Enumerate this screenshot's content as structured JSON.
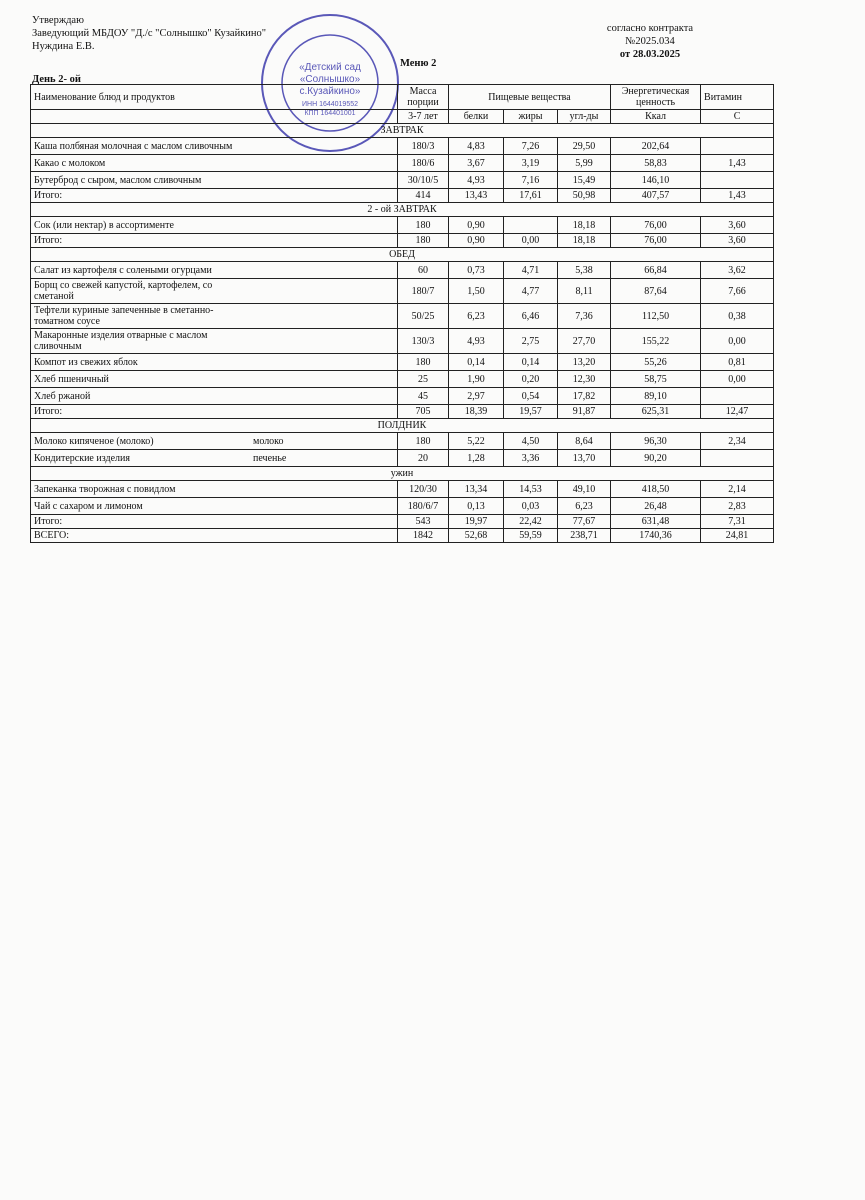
{
  "header": {
    "approval": [
      "Утверждаю",
      "Заведующий МБДОУ \"Д./с \"Солнышко\" Кузайкино\"",
      "Нуждина Е.В."
    ],
    "menu": "Меню 2",
    "contract": [
      "согласно контракта",
      "№2025.034",
      "от 28.03.2025"
    ],
    "day": "День 2- ой"
  },
  "stamp": [
    "«Детский сад",
    "«Солнышко»",
    "с.Кузайкино»",
    "ИНН 1644019552",
    "КПП 164401001"
  ],
  "table": {
    "header": {
      "name": "Наименование блюд и продуктов",
      "mass": "Масса порции",
      "age": "3-7 лет",
      "nutrients": "Пищевые вещества",
      "proteins": "белки",
      "fats": "жиры",
      "carbs": "угл-ды",
      "energy": "Энергетическая ценность",
      "kcal": "Ккал",
      "vitamin": "Витамин",
      "vitamin_c": "С"
    },
    "sections": [
      {
        "title": "ЗАВТРАК",
        "rows": [
          {
            "cells": [
              "Каша полбяная молочная с маслом сливочным",
              "180/3",
              "4,83",
              "7,26",
              "29,50",
              "202,64",
              null
            ]
          },
          {
            "cells": [
              "Какао с молоком",
              "180/6",
              "3,67",
              "3,19",
              "5,99",
              "58,83",
              "1,43"
            ]
          },
          {
            "cells": [
              "Бутерброд с сыром, маслом сливочным",
              "30/10/5",
              "4,93",
              "7,16",
              "15,49",
              "146,10",
              null
            ]
          }
        ],
        "total": [
          "Итого:",
          "414",
          "13,43",
          "17,61",
          "50,98",
          "407,57",
          "1,43"
        ]
      },
      {
        "title": "2 - ой ЗАВТРАК",
        "rows": [
          {
            "cells": [
              "Сок (или нектар) в ассортименте",
              "180",
              "0,90",
              null,
              "18,18",
              "76,00",
              "3,60"
            ]
          }
        ],
        "total": [
          "Итого:",
          "180",
          "0,90",
          "0,00",
          "18,18",
          "76,00",
          "3,60"
        ]
      },
      {
        "title": "ОБЕД",
        "rows": [
          {
            "cells": [
              "Салат из картофеля с солеными огурцами",
              "60",
              "0,73",
              "4,71",
              "5,38",
              "66,84",
              "3,62"
            ]
          },
          {
            "cells": [
              "Борщ со свежей капустой, картофелем, со сметаной",
              "180/7",
              "1,50",
              "4,77",
              "8,11",
              "87,64",
              "7,66"
            ]
          },
          {
            "cells": [
              "Тефтели куриные запеченные в сметанно-томатном соусе",
              "50/25",
              "6,23",
              "6,46",
              "7,36",
              "112,50",
              "0,38"
            ]
          },
          {
            "cells": [
              "Макаронные изделия отварные с маслом сливочным",
              "130/3",
              "4,93",
              "2,75",
              "27,70",
              "155,22",
              "0,00"
            ]
          },
          {
            "cells": [
              "Компот из свежих яблок",
              "180",
              "0,14",
              "0,14",
              "13,20",
              "55,26",
              "0,81"
            ]
          },
          {
            "cells": [
              "Хлеб пшеничный",
              "25",
              "1,90",
              "0,20",
              "12,30",
              "58,75",
              "0,00"
            ]
          },
          {
            "cells": [
              "Хлеб ржаной",
              "45",
              "2,97",
              "0,54",
              "17,82",
              "89,10",
              null
            ]
          }
        ],
        "total": [
          "Итого:",
          "705",
          "18,39",
          "19,57",
          "91,87",
          "625,31",
          "12,47"
        ]
      },
      {
        "title": "ПОЛДНИК",
        "rows": [
          {
            "cells": [
              "Молоко кипяченое (молоко)",
              "180",
              "5,22",
              "4,50",
              "8,64",
              "96,30",
              "2,34"
            ],
            "note": "молоко"
          },
          {
            "cells": [
              "Кондитерские изделия",
              "20",
              "1,28",
              "3,36",
              "13,70",
              "90,20",
              null
            ],
            "note": "печенье"
          },
          {
            "heading": "ужин"
          },
          {
            "cells": [
              "Запеканка творожная с повидлом",
              "120/30",
              "13,34",
              "14,53",
              "49,10",
              "418,50",
              "2,14"
            ]
          },
          {
            "cells": [
              "Чай с сахаром и лимоном",
              "180/6/7",
              "0,13",
              "0,03",
              "6,23",
              "26,48",
              "2,83"
            ]
          }
        ],
        "total": [
          "Итого:",
          "543",
          "19,97",
          "22,42",
          "77,67",
          "631,48",
          "7,31"
        ]
      }
    ],
    "grand_total": [
      "ВСЕГО:",
      "1842",
      "52,68",
      "59,59",
      "238,71",
      "1740,36",
      "24,81"
    ]
  }
}
